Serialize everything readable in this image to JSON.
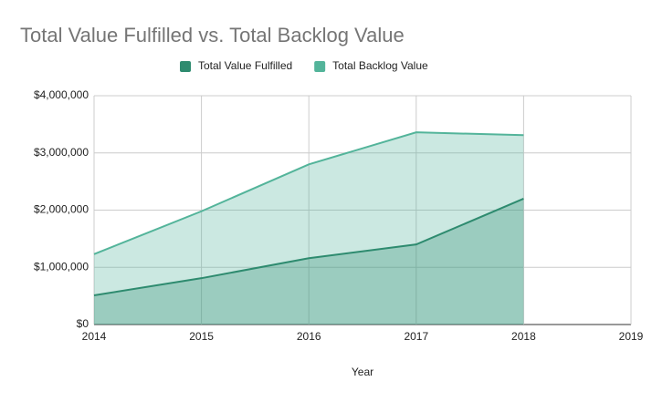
{
  "chart_data": {
    "type": "area",
    "title": "Total Value Fulfilled vs. Total Backlog Value",
    "x_label": "Year",
    "x": [
      2014,
      2015,
      2016,
      2017,
      2018
    ],
    "series": [
      {
        "name": "Total Value Fulfilled",
        "color": "#2e8b6f",
        "values": [
          510000,
          810000,
          1160000,
          1400000,
          2200000
        ]
      },
      {
        "name": "Total Backlog Value",
        "color": "#53b49a",
        "values": [
          1230000,
          1980000,
          2800000,
          3360000,
          3310000
        ]
      }
    ],
    "xlim": [
      2014,
      2019
    ],
    "xticks": [
      2014,
      2015,
      2016,
      2017,
      2018,
      2019
    ],
    "ylim": [
      0,
      4000000
    ],
    "yticks": [
      {
        "value": 0,
        "label": "$0"
      },
      {
        "value": 1000000,
        "label": "$1,000,000"
      },
      {
        "value": 2000000,
        "label": "$2,000,000"
      },
      {
        "value": 3000000,
        "label": "$3,000,000"
      },
      {
        "value": 4000000,
        "label": "$4,000,000"
      }
    ],
    "grid": true,
    "legend": "top"
  }
}
